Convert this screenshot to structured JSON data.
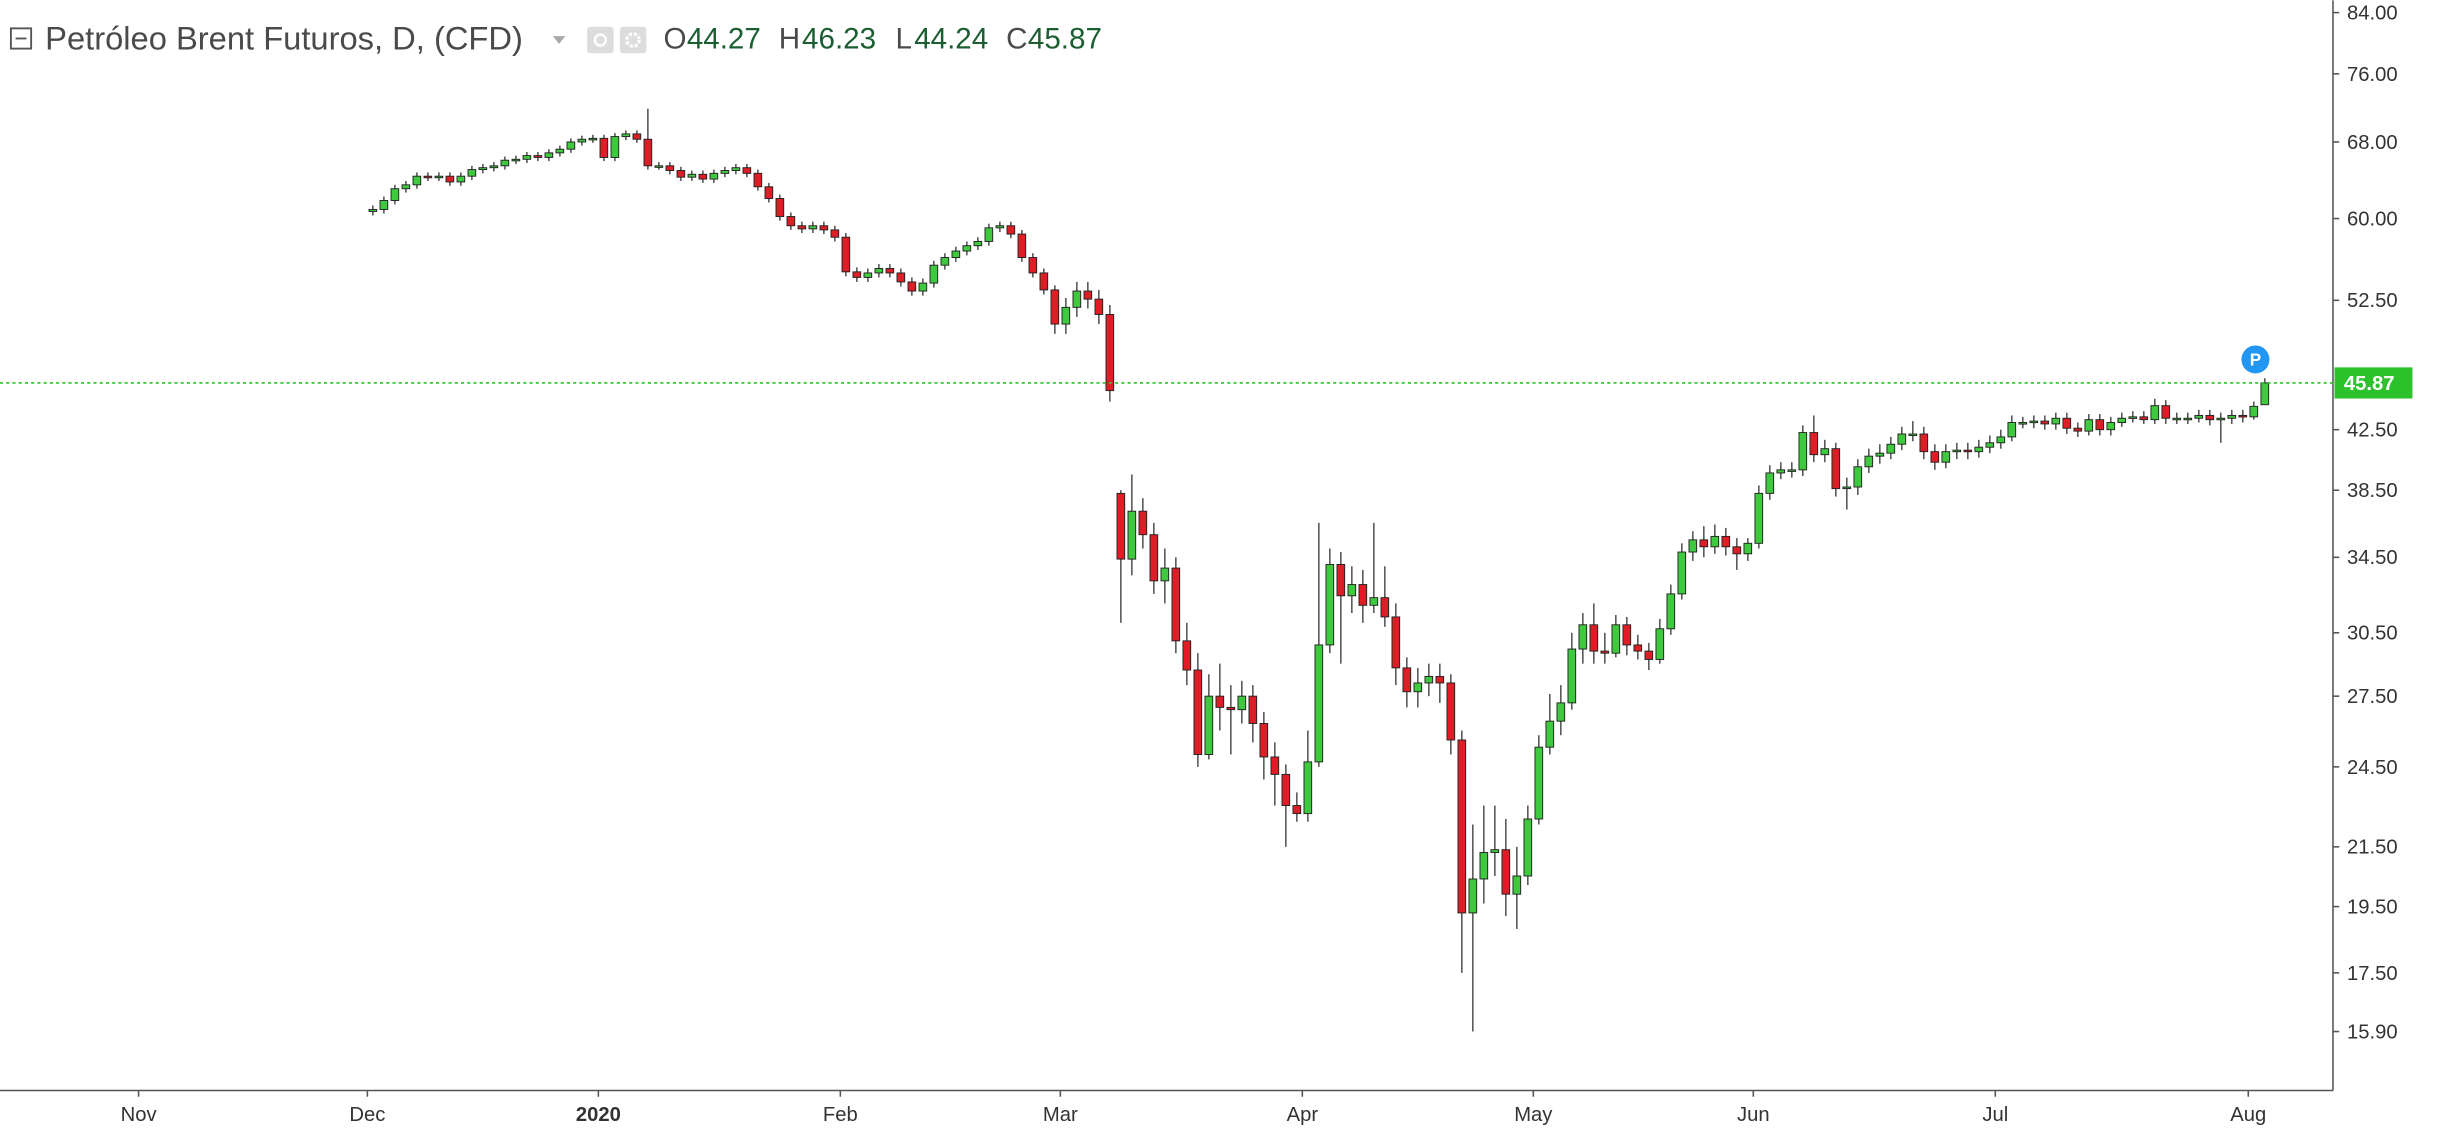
{
  "chart_data": {
    "type": "candlestick",
    "title": "Petróleo Brent Futuros, D, (CFD)",
    "ohlc_labels": [
      "O",
      "H",
      "L",
      "C"
    ],
    "marker": "P",
    "log_scale": true,
    "grid": false,
    "colors": {
      "up": "#3ec93e",
      "down": "#dc1f27",
      "border": "#222222",
      "wick": "#555555",
      "last_price": "#2bc22b",
      "marker": "#2196f3"
    },
    "categories": [
      null,
      null,
      null,
      null,
      null,
      null,
      null,
      null,
      null,
      null,
      null,
      null,
      null,
      null,
      null,
      null,
      null,
      null,
      null,
      null,
      null,
      null,
      null,
      null,
      null,
      null,
      null,
      null,
      null,
      null,
      null,
      null,
      null,
      null,
      null,
      null,
      null,
      null,
      null,
      null,
      null,
      null,
      null,
      null,
      null,
      null,
      null,
      null,
      null,
      null,
      null,
      null,
      null,
      null,
      null,
      null,
      null,
      null,
      null,
      null,
      null,
      null,
      null,
      null,
      null,
      null,
      null,
      null,
      null,
      null,
      null,
      null,
      null,
      null,
      null,
      null,
      null,
      null,
      null,
      null,
      null,
      null,
      null,
      null,
      null,
      null,
      null,
      null,
      null,
      null,
      null,
      null,
      null,
      null,
      null,
      null,
      null,
      null,
      null,
      null,
      null,
      null,
      null,
      null,
      null,
      null,
      null,
      null,
      null,
      null,
      null,
      null,
      null,
      null,
      null,
      null,
      null,
      null,
      null,
      null,
      null,
      null,
      null,
      null,
      null,
      null,
      null,
      null,
      null,
      null,
      null,
      null,
      null,
      null,
      null,
      null,
      null,
      null,
      null,
      null,
      null,
      null,
      null,
      null,
      null,
      null,
      null,
      null,
      null,
      null,
      null,
      null,
      null,
      null,
      null,
      null,
      null,
      null,
      null,
      null,
      null,
      null,
      null,
      null,
      null,
      null,
      null,
      null,
      null,
      null,
      null,
      null,
      null
    ],
    "open": [
      60.7,
      60.9,
      61.8,
      63.0,
      63.4,
      64.3,
      64.2,
      64.3,
      63.7,
      64.3,
      65.0,
      65.2,
      65.4,
      66.0,
      66.1,
      66.5,
      66.3,
      66.8,
      67.2,
      68.0,
      68.3,
      68.4,
      66.3,
      68.6,
      68.9,
      68.3,
      65.4,
      65.4,
      64.9,
      64.2,
      64.5,
      64.0,
      64.6,
      64.9,
      65.2,
      64.6,
      63.2,
      62.0,
      60.2,
      59.3,
      59.0,
      59.3,
      58.9,
      58.2,
      55.0,
      54.5,
      54.9,
      55.3,
      54.9,
      54.1,
      53.3,
      54.0,
      55.6,
      56.3,
      56.9,
      57.4,
      57.8,
      59.1,
      59.3,
      58.5,
      56.3,
      54.9,
      53.4,
      50.5,
      51.9,
      53.3,
      52.6,
      51.3,
      38.3,
      34.4,
      37.2,
      35.8,
      33.2,
      33.9,
      30.1,
      28.7,
      25.0,
      27.5,
      27.0,
      26.9,
      27.5,
      26.3,
      24.9,
      24.2,
      23.0,
      22.7,
      24.7,
      29.9,
      34.1,
      32.4,
      33.0,
      31.9,
      32.3,
      31.3,
      28.8,
      27.7,
      28.1,
      28.4,
      28.1,
      25.6,
      19.3,
      20.4,
      21.3,
      21.4,
      19.9,
      20.5,
      22.5,
      25.3,
      26.4,
      27.2,
      29.7,
      30.9,
      29.6,
      29.5,
      30.9,
      29.9,
      29.6,
      29.2,
      30.7,
      32.5,
      34.8,
      35.5,
      35.1,
      35.7,
      35.1,
      34.7,
      35.3,
      38.3,
      39.6,
      39.8,
      39.8,
      42.3,
      40.8,
      41.2,
      38.6,
      38.7,
      40.0,
      40.7,
      40.9,
      41.5,
      42.2,
      42.2,
      41.0,
      40.3,
      41.0,
      41.1,
      41.0,
      41.3,
      41.6,
      42.0,
      43.0,
      43.0,
      43.1,
      42.9,
      43.3,
      42.6,
      42.4,
      43.2,
      42.5,
      43.0,
      43.3,
      43.4,
      43.2,
      44.2,
      43.3,
      43.3,
      43.3,
      43.5,
      43.2,
      43.3,
      43.5,
      43.4,
      44.27
    ],
    "high": [
      61.3,
      62.2,
      63.4,
      63.8,
      64.7,
      64.7,
      64.7,
      64.7,
      64.7,
      65.4,
      65.6,
      65.8,
      66.4,
      66.5,
      66.9,
      66.9,
      67.2,
      67.6,
      68.4,
      68.7,
      68.8,
      68.8,
      69.0,
      69.3,
      69.3,
      71.8,
      65.8,
      65.8,
      65.3,
      64.9,
      64.9,
      65.0,
      65.3,
      65.6,
      65.6,
      65.0,
      63.6,
      62.4,
      60.6,
      59.7,
      59.7,
      59.7,
      59.3,
      58.6,
      55.4,
      55.3,
      55.7,
      55.7,
      55.3,
      54.5,
      54.4,
      56.0,
      56.7,
      57.3,
      57.8,
      58.2,
      59.5,
      59.7,
      59.7,
      58.9,
      56.7,
      55.3,
      53.8,
      52.7,
      54.1,
      54.1,
      53.4,
      52.1,
      38.5,
      39.5,
      38.0,
      36.5,
      35.0,
      34.5,
      31.0,
      29.5,
      28.5,
      29.0,
      28.0,
      28.2,
      28.0,
      26.8,
      25.5,
      24.6,
      23.5,
      26.0,
      36.5,
      35.0,
      34.8,
      34.0,
      33.8,
      36.5,
      34.0,
      32.0,
      29.3,
      28.8,
      29.0,
      29.0,
      28.5,
      26.0,
      22.3,
      23.0,
      23.0,
      22.5,
      21.5,
      23.0,
      25.8,
      27.6,
      28.0,
      30.5,
      31.5,
      32.0,
      30.5,
      31.4,
      31.3,
      30.4,
      30.0,
      31.2,
      33.0,
      35.3,
      36.0,
      36.3,
      36.4,
      36.2,
      35.6,
      35.6,
      38.8,
      40.1,
      40.3,
      40.3,
      42.8,
      43.5,
      41.8,
      41.6,
      39.3,
      40.5,
      41.2,
      41.5,
      42.0,
      42.7,
      43.1,
      42.7,
      41.5,
      41.5,
      41.6,
      41.6,
      41.8,
      42.1,
      42.5,
      43.5,
      43.4,
      43.5,
      43.5,
      43.7,
      43.7,
      43.0,
      43.6,
      43.6,
      43.4,
      43.7,
      43.8,
      43.8,
      44.7,
      44.6,
      43.7,
      43.7,
      43.9,
      43.9,
      43.7,
      43.9,
      43.9,
      44.5,
      46.23
    ],
    "low": [
      60.3,
      60.5,
      61.4,
      62.6,
      63.0,
      63.8,
      63.8,
      63.3,
      63.3,
      63.9,
      64.6,
      64.8,
      65.0,
      65.6,
      65.7,
      65.9,
      65.9,
      66.4,
      66.8,
      67.6,
      67.9,
      65.9,
      65.9,
      68.2,
      67.9,
      65.0,
      65.0,
      64.5,
      63.8,
      63.8,
      63.6,
      63.6,
      64.2,
      64.5,
      64.2,
      62.8,
      61.6,
      59.8,
      58.9,
      58.6,
      58.6,
      58.5,
      57.8,
      54.6,
      54.1,
      54.1,
      54.5,
      54.5,
      53.7,
      52.9,
      52.9,
      53.6,
      55.2,
      55.9,
      56.5,
      57.0,
      57.4,
      58.7,
      58.1,
      55.9,
      54.5,
      53.0,
      49.7,
      49.7,
      51.1,
      51.8,
      50.5,
      44.5,
      31.0,
      33.5,
      35.0,
      32.5,
      32.0,
      29.5,
      28.0,
      24.5,
      24.8,
      26.0,
      25.0,
      26.3,
      25.5,
      24.0,
      23.0,
      21.5,
      22.4,
      22.4,
      24.5,
      29.5,
      29.0,
      31.5,
      31.0,
      31.5,
      30.8,
      28.0,
      27.0,
      27.0,
      27.5,
      27.2,
      25.0,
      17.5,
      15.9,
      19.6,
      20.5,
      19.2,
      18.8,
      20.2,
      22.3,
      25.0,
      25.8,
      26.9,
      29.0,
      29.0,
      29.0,
      29.3,
      29.4,
      29.2,
      28.7,
      29.0,
      30.4,
      32.2,
      34.3,
      34.5,
      34.7,
      34.6,
      33.8,
      34.3,
      35.0,
      37.9,
      39.2,
      39.3,
      39.4,
      40.3,
      40.3,
      38.1,
      37.3,
      38.2,
      39.6,
      40.2,
      40.5,
      41.1,
      41.7,
      40.5,
      39.8,
      39.9,
      40.5,
      40.5,
      40.6,
      40.9,
      41.2,
      41.7,
      42.6,
      42.6,
      42.5,
      42.5,
      42.2,
      42.0,
      42.1,
      42.1,
      42.1,
      42.7,
      43.0,
      42.9,
      42.9,
      42.9,
      42.9,
      42.9,
      43.0,
      42.8,
      41.6,
      42.9,
      43.0,
      43.2,
      44.24
    ],
    "close": [
      60.9,
      61.8,
      63.0,
      63.4,
      64.3,
      64.2,
      64.3,
      63.7,
      64.3,
      65.0,
      65.2,
      65.4,
      66.0,
      66.1,
      66.5,
      66.3,
      66.8,
      67.2,
      68.0,
      68.3,
      68.4,
      66.3,
      68.6,
      68.9,
      68.3,
      65.4,
      65.4,
      64.9,
      64.2,
      64.5,
      64.0,
      64.6,
      64.9,
      65.2,
      64.6,
      63.2,
      62.0,
      60.2,
      59.3,
      59.0,
      59.3,
      58.9,
      58.2,
      55.0,
      54.5,
      54.9,
      55.3,
      54.9,
      54.1,
      53.3,
      54.0,
      55.6,
      56.3,
      56.9,
      57.4,
      57.8,
      59.1,
      59.3,
      58.5,
      56.3,
      54.9,
      53.4,
      50.5,
      51.9,
      53.3,
      52.6,
      51.3,
      45.3,
      34.4,
      37.2,
      35.8,
      33.2,
      33.9,
      30.1,
      28.7,
      25.0,
      27.5,
      27.0,
      26.9,
      27.5,
      26.3,
      24.9,
      24.2,
      23.0,
      22.7,
      24.7,
      29.9,
      34.1,
      32.4,
      33.0,
      31.9,
      32.3,
      31.3,
      28.8,
      27.7,
      28.1,
      28.4,
      28.1,
      25.6,
      19.3,
      20.4,
      21.3,
      21.4,
      19.9,
      20.5,
      22.5,
      25.3,
      26.4,
      27.2,
      29.7,
      30.9,
      29.6,
      29.5,
      30.9,
      29.9,
      29.6,
      29.2,
      30.7,
      32.5,
      34.8,
      35.5,
      35.1,
      35.7,
      35.1,
      34.7,
      35.3,
      38.3,
      39.6,
      39.8,
      39.8,
      42.3,
      40.8,
      41.2,
      38.6,
      38.7,
      40.0,
      40.7,
      40.9,
      41.5,
      42.2,
      42.2,
      41.0,
      40.3,
      41.0,
      41.1,
      41.0,
      41.3,
      41.6,
      42.0,
      43.0,
      43.0,
      43.1,
      42.9,
      43.3,
      42.6,
      42.4,
      43.2,
      42.5,
      43.0,
      43.3,
      43.4,
      43.2,
      44.2,
      43.3,
      43.3,
      43.3,
      43.5,
      43.2,
      43.3,
      43.5,
      43.4,
      44.15,
      45.87
    ],
    "xlim": [
      -33.9,
      178.2
    ],
    "xticks": [
      {
        "value": -21.3,
        "label": "Nov"
      },
      {
        "value": -0.5,
        "label": "Dec"
      },
      {
        "value": 20.5,
        "label": "2020"
      },
      {
        "value": 42.5,
        "label": "Feb"
      },
      {
        "value": 62.5,
        "label": "Mar"
      },
      {
        "value": 84.5,
        "label": "Apr"
      },
      {
        "value": 105.5,
        "label": "May"
      },
      {
        "value": 125.5,
        "label": "Jun"
      },
      {
        "value": 147.5,
        "label": "Jul"
      },
      {
        "value": 170.5,
        "label": "Aug"
      }
    ],
    "ylim": [
      14.44,
      85.7
    ],
    "yticks": [
      {
        "value": 84,
        "label": "84.00"
      },
      {
        "value": 76,
        "label": "76.00"
      },
      {
        "value": 68,
        "label": "68.00"
      },
      {
        "value": 60,
        "label": "60.00"
      },
      {
        "value": 52.5,
        "label": "52.50"
      },
      {
        "value": 42.5,
        "label": "42.50"
      },
      {
        "value": 38.5,
        "label": "38.50"
      },
      {
        "value": 34.5,
        "label": "34.50"
      },
      {
        "value": 30.5,
        "label": "30.50"
      },
      {
        "value": 27.5,
        "label": "27.50"
      },
      {
        "value": 24.5,
        "label": "24.50"
      },
      {
        "value": 21.5,
        "label": "21.50"
      },
      {
        "value": 19.5,
        "label": "19.50"
      },
      {
        "value": 17.5,
        "label": "17.50"
      },
      {
        "value": 15.9,
        "label": "15.90"
      }
    ]
  }
}
